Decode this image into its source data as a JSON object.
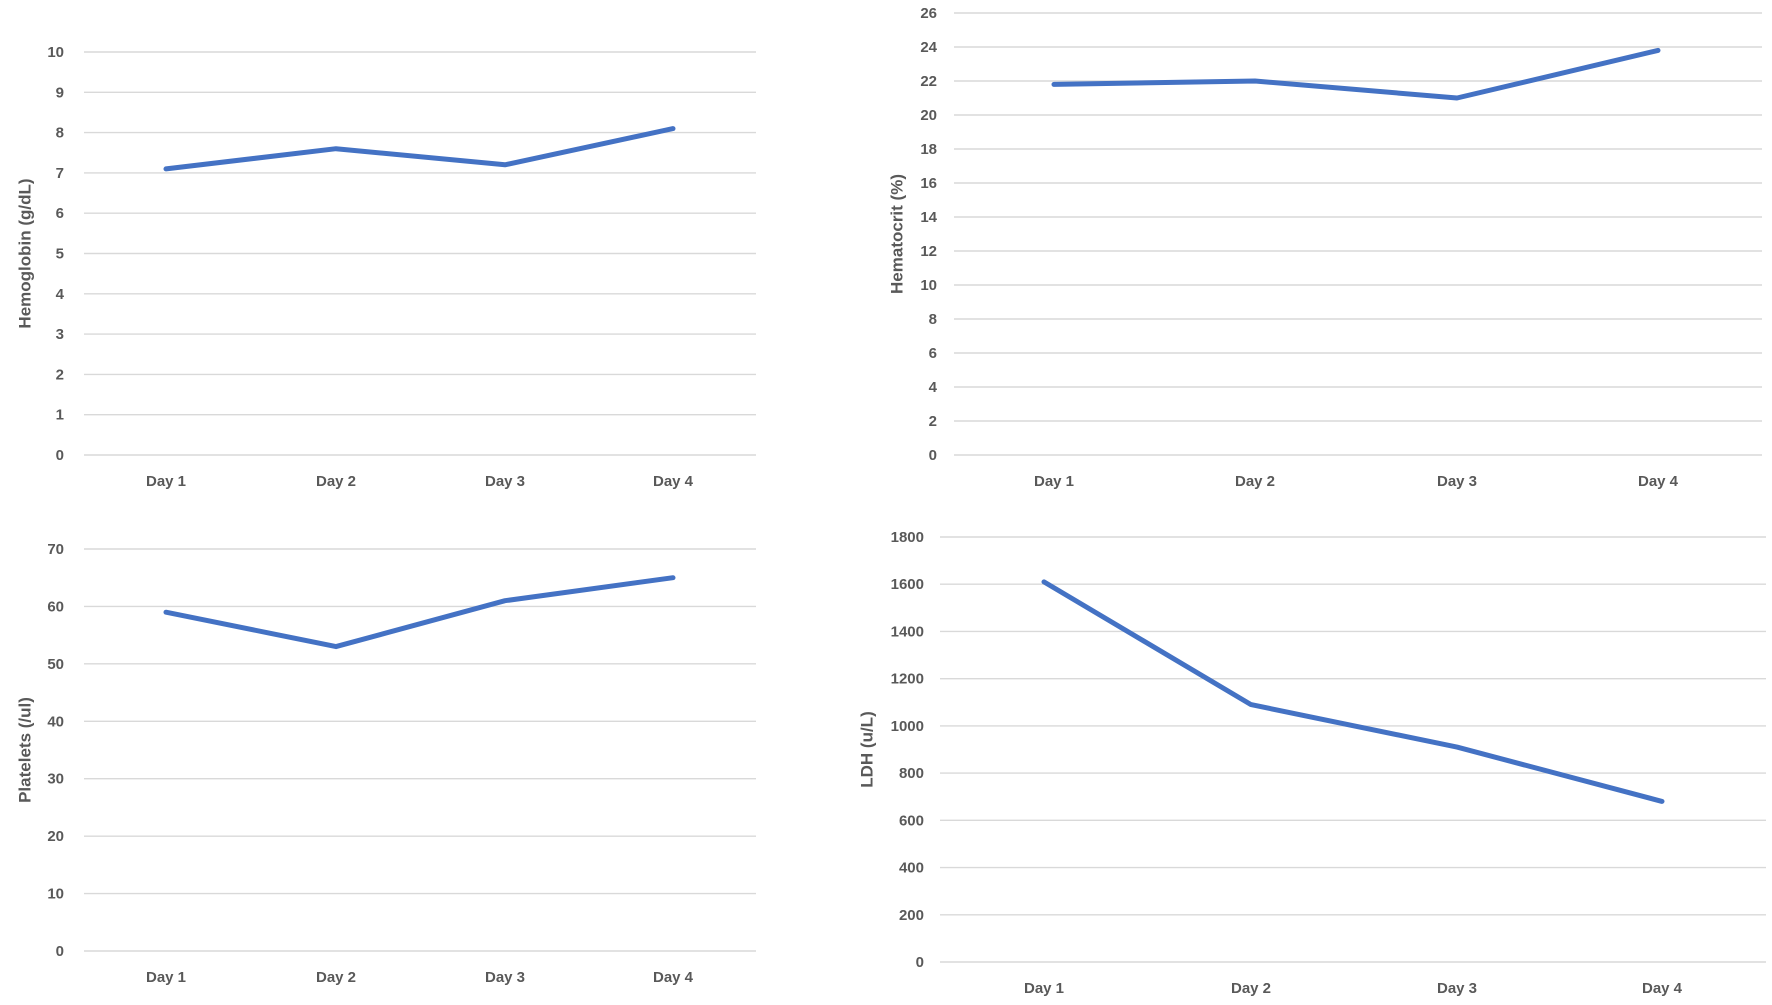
{
  "line_color": "#4472c4",
  "chart_data": [
    {
      "type": "line",
      "categories": [
        "Day 1",
        "Day 2",
        "Day 3",
        "Day 4"
      ],
      "series": [
        {
          "values": [
            7.1,
            7.6,
            7.2,
            8.1
          ]
        }
      ],
      "title": "",
      "xlabel": "",
      "ylabel": "Hemoglobin (g/dL)",
      "ylim": [
        0,
        10
      ],
      "ytick_step": 1,
      "grid": true,
      "legend": "none"
    },
    {
      "type": "line",
      "categories": [
        "Day 1",
        "Day 2",
        "Day 3",
        "Day 4"
      ],
      "series": [
        {
          "values": [
            21.8,
            22.0,
            21.0,
            23.8
          ]
        }
      ],
      "title": "",
      "xlabel": "",
      "ylabel": "Hematocrit (%)",
      "ylim": [
        0,
        26
      ],
      "ytick_step": 2,
      "grid": true,
      "legend": "none"
    },
    {
      "type": "line",
      "categories": [
        "Day 1",
        "Day 2",
        "Day 3",
        "Day 4"
      ],
      "series": [
        {
          "values": [
            59,
            53,
            61,
            65
          ]
        }
      ],
      "title": "",
      "xlabel": "",
      "ylabel": "Platelets (/ul)",
      "ylim": [
        0,
        70
      ],
      "ytick_step": 10,
      "grid": true,
      "legend": "none"
    },
    {
      "type": "line",
      "categories": [
        "Day 1",
        "Day 2",
        "Day 3",
        "Day 4"
      ],
      "series": [
        {
          "values": [
            1610,
            1090,
            910,
            680
          ]
        }
      ],
      "title": "",
      "xlabel": "",
      "ylabel": "LDH (u/L)",
      "ylim": [
        0,
        1800
      ],
      "ytick_step": 200,
      "grid": true,
      "legend": "none"
    }
  ]
}
